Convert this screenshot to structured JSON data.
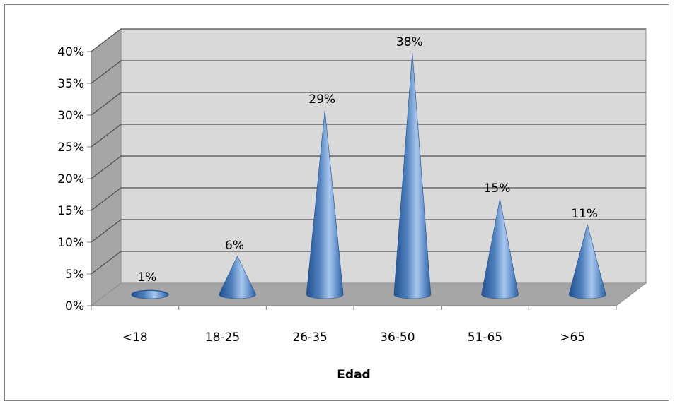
{
  "chart_data": {
    "type": "bar",
    "subtype": "3d-cone",
    "categories": [
      "<18",
      "18-25",
      "26-35",
      "36-50",
      "51-65",
      ">65"
    ],
    "values": [
      1,
      6,
      29,
      38,
      15,
      11
    ],
    "data_labels": [
      "1%",
      "6%",
      "29%",
      "38%",
      "15%",
      "11%"
    ],
    "xlabel": "Edad",
    "ylabel": "",
    "ylim": [
      0,
      40
    ],
    "yticks": [
      "0%",
      "5%",
      "10%",
      "15%",
      "20%",
      "25%",
      "30%",
      "35%",
      "40%"
    ],
    "grid": true,
    "legend": "none",
    "colors": {
      "cone": "#4f81bd",
      "cone_dark": "#1f4e8c",
      "cone_light": "#a9c7ee",
      "walls": "#d9d9d9",
      "wall_side": "#a6a6a6",
      "floor": "#a6a6a6",
      "grid": "#4d4d4d"
    }
  }
}
